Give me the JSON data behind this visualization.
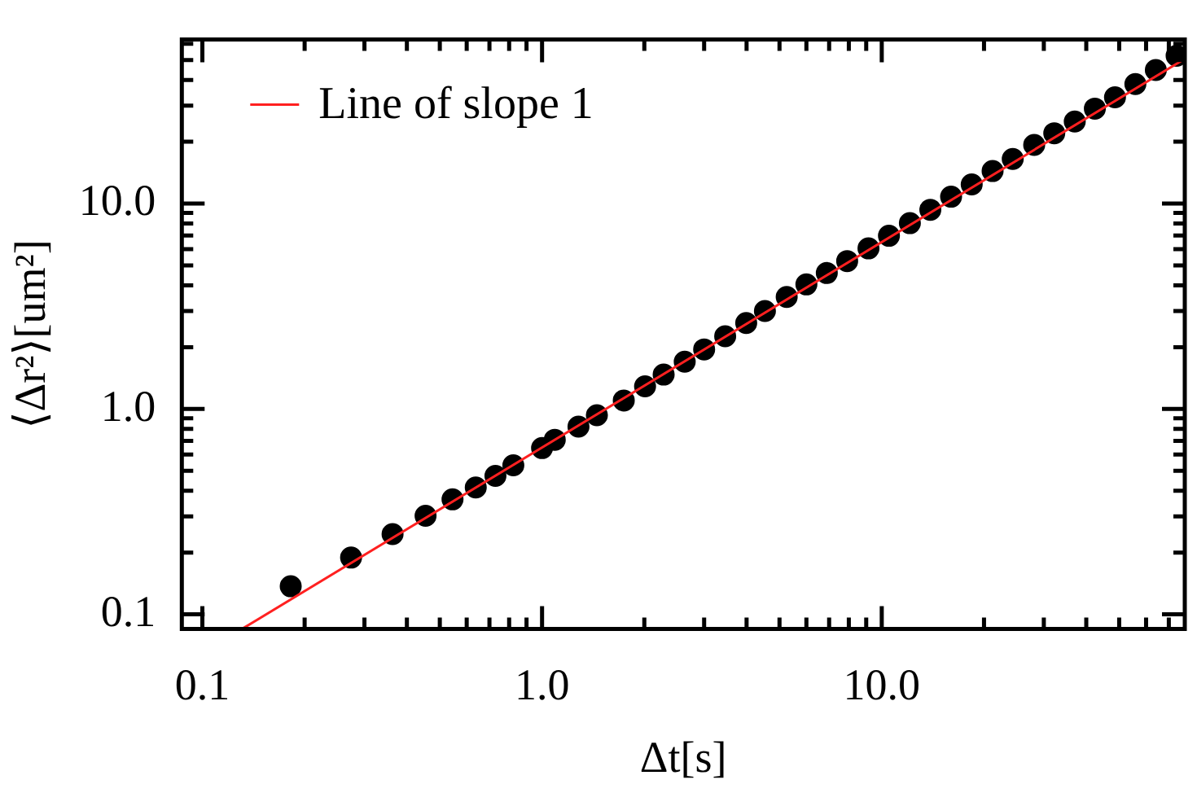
{
  "chart_data": {
    "type": "scatter",
    "xlabel": "Δt[s]",
    "ylabel": "⟨Δr²⟩[um²]",
    "log": "xy",
    "xlim": [
      0.087,
      78
    ],
    "ylim": [
      0.085,
      63
    ],
    "xticks": [
      0.1,
      {
        "value": 0.2,
        "label": null
      },
      {
        "value": 0.3,
        "label": null
      },
      {
        "value": 0.4,
        "label": null
      },
      {
        "value": 0.5,
        "label": null
      },
      {
        "value": 0.6,
        "label": null
      },
      {
        "value": 0.7,
        "label": null
      },
      {
        "value": 0.8,
        "label": null
      },
      {
        "value": 0.9,
        "label": null
      },
      {
        "value": 1,
        "label": "1.0"
      },
      {
        "value": 2,
        "label": null
      },
      {
        "value": 3,
        "label": null
      },
      {
        "value": 4,
        "label": null
      },
      {
        "value": 5,
        "label": null
      },
      {
        "value": 6,
        "label": null
      },
      {
        "value": 7,
        "label": null
      },
      {
        "value": 8,
        "label": null
      },
      {
        "value": 9,
        "label": null
      },
      {
        "value": 10,
        "label": "10.0"
      },
      {
        "value": 20,
        "label": null
      },
      {
        "value": 30,
        "label": null
      },
      {
        "value": 40,
        "label": null
      },
      {
        "value": 50,
        "label": null
      },
      {
        "value": 60,
        "label": null
      },
      {
        "value": 70,
        "label": null
      }
    ],
    "yticks": [
      0.1,
      {
        "value": 0.2,
        "label": null
      },
      {
        "value": 0.3,
        "label": null
      },
      {
        "value": 0.4,
        "label": null
      },
      {
        "value": 0.5,
        "label": null
      },
      {
        "value": 0.6,
        "label": null
      },
      {
        "value": 0.7,
        "label": null
      },
      {
        "value": 0.8,
        "label": null
      },
      {
        "value": 0.9,
        "label": null
      },
      {
        "value": 1,
        "label": "1.0"
      },
      {
        "value": 2,
        "label": null
      },
      {
        "value": 3,
        "label": null
      },
      {
        "value": 4,
        "label": null
      },
      {
        "value": 5,
        "label": null
      },
      {
        "value": 6,
        "label": null
      },
      {
        "value": 7,
        "label": null
      },
      {
        "value": 8,
        "label": null
      },
      {
        "value": 9,
        "label": null
      },
      {
        "value": 10,
        "label": "10.0"
      },
      {
        "value": 20,
        "label": null
      },
      {
        "value": 30,
        "label": null
      },
      {
        "value": 40,
        "label": null
      },
      {
        "value": 50,
        "label": null
      },
      {
        "value": 60,
        "label": null
      }
    ],
    "grid": false,
    "legend": "top left",
    "marker": "circle",
    "series": [
      {
        "type": "scatter",
        "color": "#000000",
        "x": [
          0.182,
          0.274,
          0.363,
          0.454,
          0.545,
          0.638,
          0.729,
          0.823,
          1.0,
          1.09,
          1.28,
          1.45,
          1.74,
          2.01,
          2.28,
          2.63,
          3.0,
          3.46,
          3.99,
          4.53,
          5.25,
          6.0,
          6.89,
          7.91,
          9.14,
          10.5,
          12.1,
          13.9,
          16.0,
          18.4,
          21.2,
          24.3,
          28.1,
          32.2,
          37.0,
          42.4,
          48.6,
          55.8,
          64.1,
          73.8
        ],
        "values": [
          0.137,
          0.189,
          0.246,
          0.302,
          0.363,
          0.415,
          0.472,
          0.532,
          0.645,
          0.708,
          0.82,
          0.933,
          1.1,
          1.29,
          1.47,
          1.7,
          1.95,
          2.26,
          2.62,
          3.0,
          3.51,
          4.04,
          4.59,
          5.25,
          6.05,
          6.97,
          8.03,
          9.33,
          10.8,
          12.4,
          14.4,
          16.5,
          19.3,
          22.0,
          25.1,
          29.0,
          32.9,
          38.2,
          44.7,
          52.5
        ]
      },
      {
        "type": "line",
        "name": "Line of slope 1",
        "color": "#ff2020",
        "marker": "none",
        "line_style": "solid",
        "x": [
          0.131,
          78
        ],
        "values": [
          0.085,
          50.7
        ]
      }
    ]
  }
}
